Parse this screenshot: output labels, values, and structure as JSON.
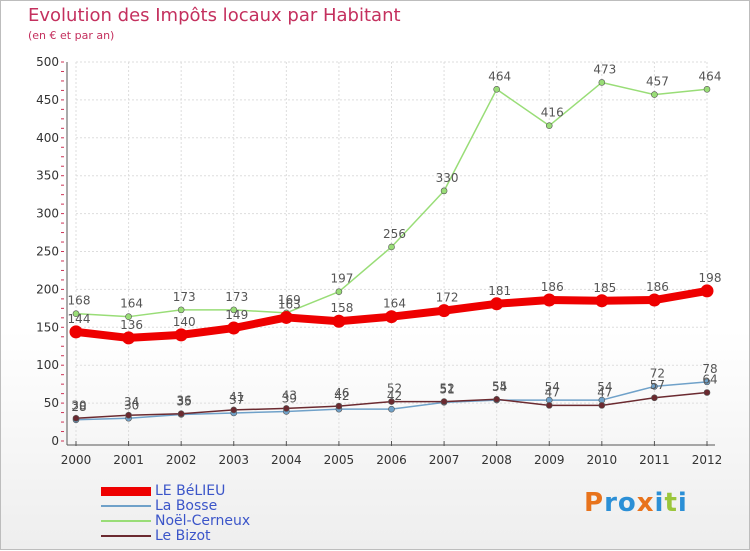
{
  "title": "Evolution des Impôts locaux par Habitant",
  "subtitle": "(en € et par an)",
  "logo": {
    "letters": [
      "P",
      "r",
      "o",
      "x",
      "i",
      "t",
      "i"
    ],
    "colors": [
      "#e8731c",
      "#2b8fd6",
      "#2b8fd6",
      "#e8731c",
      "#2b8fd6",
      "#9bc63b",
      "#2b8fd6"
    ]
  },
  "chart_data": {
    "type": "line",
    "x": [
      "2000",
      "2001",
      "2002",
      "2003",
      "2004",
      "2005",
      "2006",
      "2007",
      "2008",
      "2009",
      "2010",
      "2011",
      "2012"
    ],
    "ylim": [
      0,
      500
    ],
    "yticks": [
      0,
      50,
      100,
      150,
      200,
      250,
      300,
      350,
      400,
      450,
      500
    ],
    "grid": true,
    "legend_position": "bottom-left",
    "series": [
      {
        "name": "LE BéLIEU",
        "color": "#ee0000",
        "width": 8,
        "values": [
          144,
          136,
          140,
          149,
          163,
          158,
          164,
          172,
          181,
          186,
          185,
          186,
          198
        ]
      },
      {
        "name": "La Bosse",
        "color": "#6fa1c9",
        "width": 1.5,
        "values": [
          28,
          30,
          35,
          37,
          39,
          42,
          42,
          51,
          54,
          54,
          54,
          72,
          78
        ]
      },
      {
        "name": "Noël-Cerneux",
        "color": "#99dd77",
        "width": 1.5,
        "values": [
          168,
          164,
          173,
          173,
          169,
          197,
          256,
          330,
          464,
          416,
          473,
          457,
          464
        ]
      },
      {
        "name": "Le Bizot",
        "color": "#6b2a30",
        "width": 1.5,
        "values": [
          30,
          34,
          36,
          41,
          43,
          46,
          52,
          52,
          55,
          47,
          47,
          57,
          64
        ]
      }
    ]
  }
}
